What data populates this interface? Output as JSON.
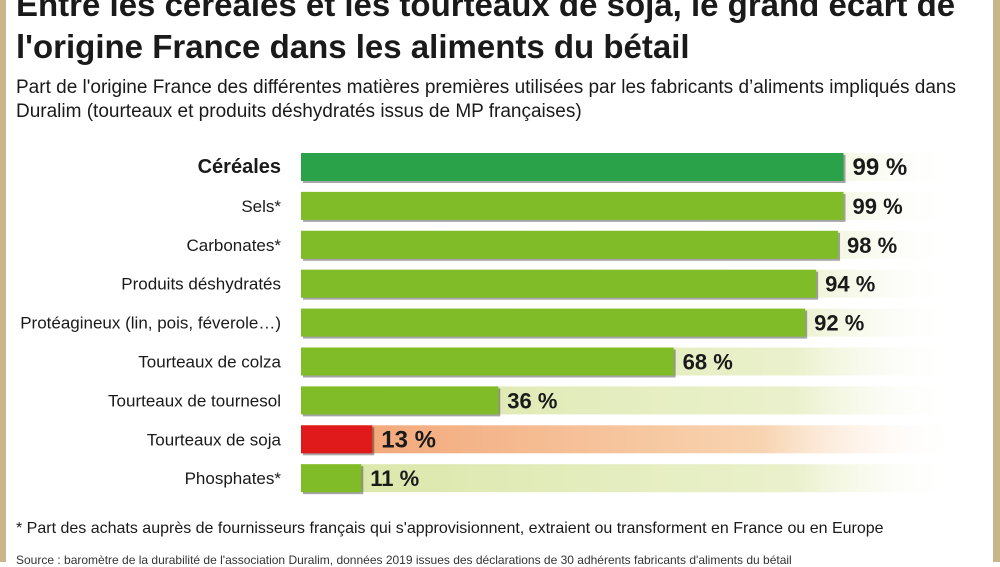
{
  "title": "Entre les céréales et les tourteaux de soja, le grand écart de l'origine France dans les aliments du bétail",
  "subtitle": "Part de l'origine France des différentes matières premières utilisées par les fabricants d’aliments impliqués dans Duralim (tourteaux et produits déshydratés issus de MP françaises)",
  "footnote": "* Part des achats auprès de fournisseurs français qui s'approvisionnent, extraient ou transforment en France ou en Europe",
  "source": "Source : baromètre de la durabilité de l'association Duralim, données 2019 issues des déclarations de 30 adhérents fabricants d'aliments du bétail",
  "colors": {
    "highlight_bar": "#2aa24a",
    "default_bar": "#7fbc28",
    "alert_bar": "#e01a1a",
    "band_default": "#d9e6a6",
    "band_alert": "#f2a070",
    "frame": "#c8b58a"
  },
  "chart_data": {
    "type": "bar",
    "orientation": "horizontal",
    "categories": [
      "Céréales",
      "Sels*",
      "Carbonates*",
      "Produits déshydratés",
      "Protéagineux (lin, pois, féverole…)",
      "Tourteaux de colza",
      "Tourteaux de tournesol",
      "Tourteaux de soja",
      "Phosphates*"
    ],
    "values": [
      99,
      99,
      98,
      94,
      92,
      68,
      36,
      13,
      11
    ],
    "value_labels": [
      "99 %",
      "99 %",
      "98 %",
      "94 %",
      "92 %",
      "68 %",
      "36 %",
      "13 %",
      "11 %"
    ],
    "highlight": [
      "Céréales"
    ],
    "alert": [
      "Tourteaux de soja"
    ],
    "xlim": [
      0,
      100
    ],
    "grid": false,
    "legend": "none"
  }
}
